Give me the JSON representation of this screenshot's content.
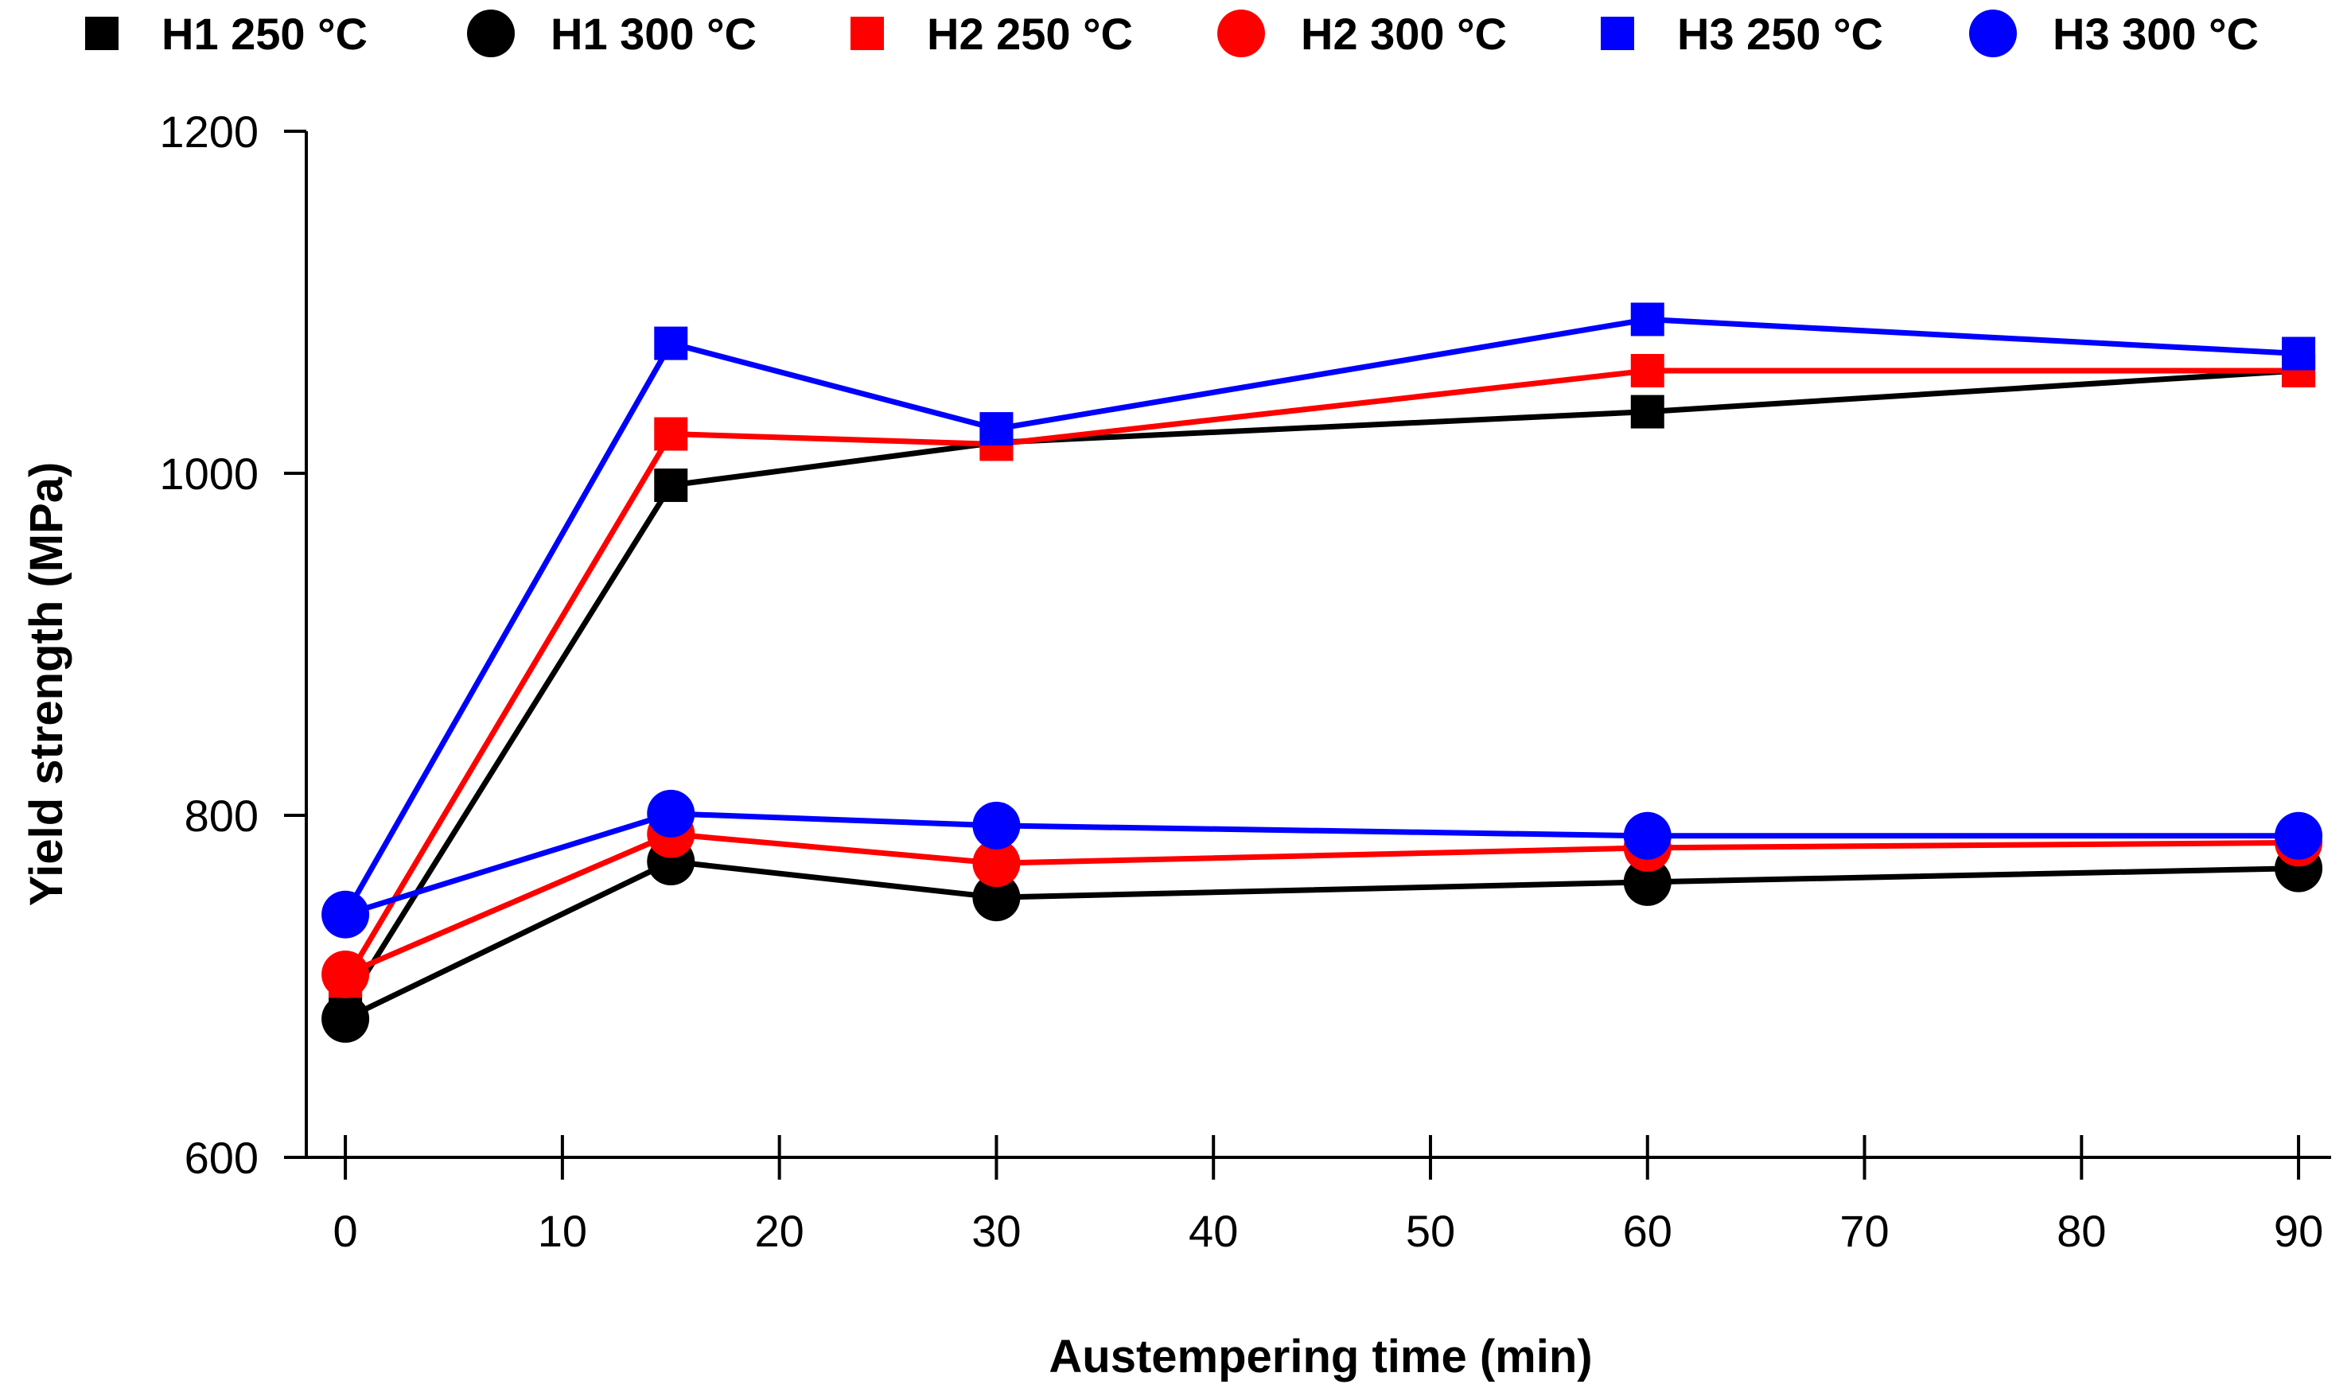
{
  "chart_data": {
    "type": "line",
    "title": "",
    "xlabel": "Austempering time (min)",
    "ylabel": "Yield strength (MPa)",
    "xlim": [
      -1.8,
      91.5
    ],
    "ylim": [
      600,
      1200
    ],
    "xticks": [
      0,
      10,
      20,
      30,
      40,
      50,
      60,
      70,
      80,
      90
    ],
    "yticks": [
      600,
      800,
      1000,
      1200
    ],
    "x_tick_labels": [
      "0",
      "10",
      "20",
      "30",
      "40",
      "50",
      "60",
      "70",
      "80",
      "90"
    ],
    "y_tick_labels": [
      "600",
      "800",
      "1000",
      "1200"
    ],
    "grid": false,
    "legend_position": "top",
    "x": [
      0,
      15,
      30,
      60,
      90
    ],
    "series": [
      {
        "name": "H1 250 °C",
        "marker": "square",
        "color": "#000000",
        "values": [
          688,
          993,
          1018,
          1036,
          1060
        ]
      },
      {
        "name": "H1 300 °C",
        "marker": "circle",
        "color": "#000000",
        "values": [
          681,
          773,
          752,
          761,
          769
        ]
      },
      {
        "name": "H2 250 °C",
        "marker": "square",
        "color": "#ff0000",
        "values": [
          703,
          1023,
          1017,
          1060,
          1060
        ]
      },
      {
        "name": "H2 300 °C",
        "marker": "circle",
        "color": "#ff0000",
        "values": [
          707,
          789,
          772,
          781,
          784
        ]
      },
      {
        "name": "H3 250 °C",
        "marker": "square",
        "color": "#0000ff",
        "values": [
          742,
          1076,
          1026,
          1090,
          1070
        ]
      },
      {
        "name": "H3 300 °C",
        "marker": "circle",
        "color": "#0000ff",
        "values": [
          742,
          801,
          794,
          788,
          788
        ]
      }
    ]
  }
}
